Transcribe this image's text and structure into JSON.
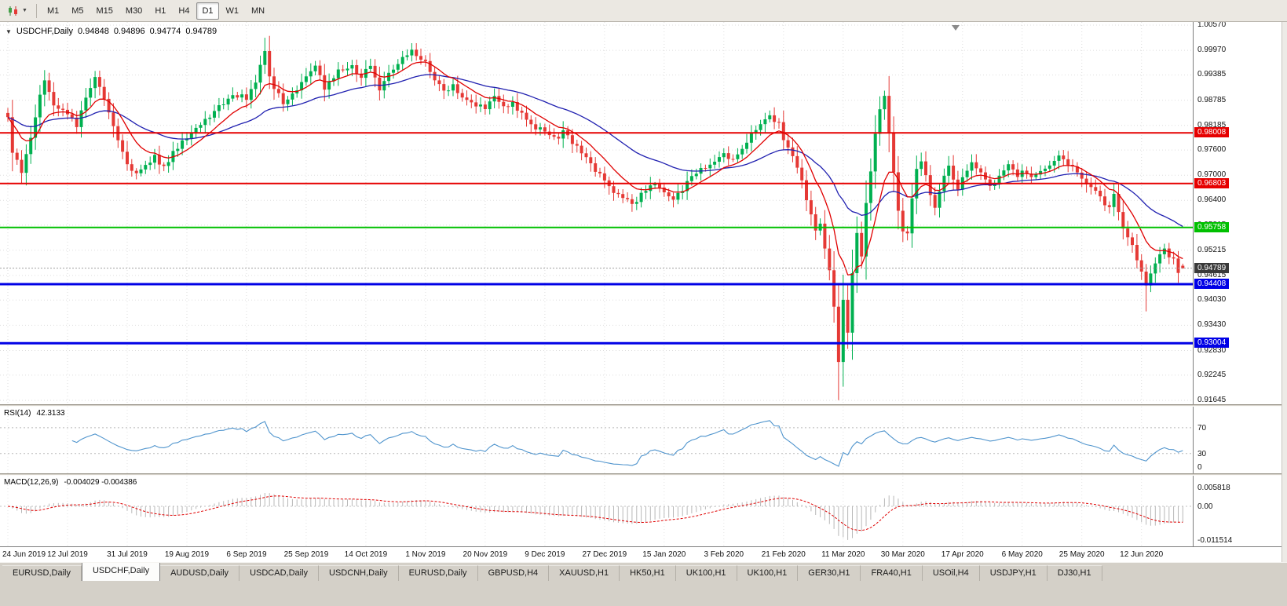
{
  "toolbar": {
    "timeframes": [
      "M1",
      "M5",
      "M15",
      "M30",
      "H1",
      "H4",
      "D1",
      "W1",
      "MN"
    ],
    "active_timeframe": "D1"
  },
  "chart_data": {
    "type": "candlestick",
    "symbol_period_label": "USDCHF,Daily",
    "current_bar": {
      "open": "0.94848",
      "high": "0.94896",
      "low": "0.94774",
      "close": "0.94789"
    },
    "bar_count": 257,
    "y_axis_ticks": [
      "1.00570",
      "0.99970",
      "0.99385",
      "0.98785",
      "0.98185",
      "0.97600",
      "0.97000",
      "0.96400",
      "0.95815",
      "0.95215",
      "0.94615",
      "0.94030",
      "0.93430",
      "0.92830",
      "0.92245",
      "0.91645"
    ],
    "x_axis_dates": [
      {
        "label": "24 Jun 2019",
        "day": 0
      },
      {
        "label": "12 Jul 2019",
        "day": 13
      },
      {
        "label": "31 Jul 2019",
        "day": 26
      },
      {
        "label": "19 Aug 2019",
        "day": 39
      },
      {
        "label": "6 Sep 2019",
        "day": 52
      },
      {
        "label": "25 Sep 2019",
        "day": 65
      },
      {
        "label": "14 Oct 2019",
        "day": 78
      },
      {
        "label": "1 Nov 2019",
        "day": 91
      },
      {
        "label": "20 Nov 2019",
        "day": 104
      },
      {
        "label": "9 Dec 2019",
        "day": 117
      },
      {
        "label": "27 Dec 2019",
        "day": 130
      },
      {
        "label": "15 Jan 2020",
        "day": 143
      },
      {
        "label": "3 Feb 2020",
        "day": 156
      },
      {
        "label": "21 Feb 2020",
        "day": 169
      },
      {
        "label": "11 Mar 2020",
        "day": 182
      },
      {
        "label": "30 Mar 2020",
        "day": 195
      },
      {
        "label": "17 Apr 2020",
        "day": 208
      },
      {
        "label": "6 May 2020",
        "day": 221
      },
      {
        "label": "25 May 2020",
        "day": 234
      },
      {
        "label": "12 Jun 2020",
        "day": 247
      }
    ],
    "price_path_anchors": [
      [
        0,
        0.9838
      ],
      [
        1,
        0.9755
      ],
      [
        3,
        0.9712
      ],
      [
        5,
        0.979
      ],
      [
        7,
        0.9888
      ],
      [
        8,
        0.9922
      ],
      [
        10,
        0.987
      ],
      [
        13,
        0.9848
      ],
      [
        15,
        0.9815
      ],
      [
        17,
        0.989
      ],
      [
        19,
        0.9928
      ],
      [
        21,
        0.9885
      ],
      [
        23,
        0.9812
      ],
      [
        26,
        0.9725
      ],
      [
        28,
        0.97
      ],
      [
        30,
        0.9718
      ],
      [
        32,
        0.9745
      ],
      [
        34,
        0.9716
      ],
      [
        36,
        0.9758
      ],
      [
        39,
        0.9792
      ],
      [
        43,
        0.983
      ],
      [
        46,
        0.9862
      ],
      [
        49,
        0.9895
      ],
      [
        52,
        0.9885
      ],
      [
        54,
        0.9925
      ],
      [
        56,
        0.9998
      ],
      [
        57,
        0.9942
      ],
      [
        58,
        0.9905
      ],
      [
        60,
        0.9872
      ],
      [
        62,
        0.9888
      ],
      [
        65,
        0.993
      ],
      [
        67,
        0.9955
      ],
      [
        69,
        0.9908
      ],
      [
        72,
        0.9948
      ],
      [
        75,
        0.9958
      ],
      [
        77,
        0.9938
      ],
      [
        79,
        0.9958
      ],
      [
        81,
        0.9906
      ],
      [
        83,
        0.994
      ],
      [
        86,
        0.9978
      ],
      [
        88,
        0.9998
      ],
      [
        89,
        0.9985
      ],
      [
        91,
        0.9975
      ],
      [
        93,
        0.993
      ],
      [
        95,
        0.9898
      ],
      [
        97,
        0.9912
      ],
      [
        99,
        0.989
      ],
      [
        101,
        0.9868
      ],
      [
        104,
        0.9862
      ],
      [
        106,
        0.9888
      ],
      [
        108,
        0.986
      ],
      [
        110,
        0.9868
      ],
      [
        112,
        0.9845
      ],
      [
        114,
        0.9822
      ],
      [
        117,
        0.98
      ],
      [
        119,
        0.9788
      ],
      [
        121,
        0.98
      ],
      [
        123,
        0.9778
      ],
      [
        125,
        0.9752
      ],
      [
        127,
        0.9725
      ],
      [
        130,
        0.969
      ],
      [
        132,
        0.9662
      ],
      [
        134,
        0.9645
      ],
      [
        136,
        0.9628
      ],
      [
        138,
        0.9655
      ],
      [
        140,
        0.9682
      ],
      [
        143,
        0.9662
      ],
      [
        145,
        0.9645
      ],
      [
        147,
        0.9668
      ],
      [
        149,
        0.9692
      ],
      [
        151,
        0.9715
      ],
      [
        153,
        0.973
      ],
      [
        156,
        0.9752
      ],
      [
        158,
        0.9738
      ],
      [
        160,
        0.9768
      ],
      [
        162,
        0.98
      ],
      [
        164,
        0.9828
      ],
      [
        166,
        0.9845
      ],
      [
        168,
        0.9822
      ],
      [
        169,
        0.979
      ],
      [
        171,
        0.9745
      ],
      [
        173,
        0.969
      ],
      [
        174,
        0.9638
      ],
      [
        175,
        0.961
      ],
      [
        176,
        0.9565
      ],
      [
        177,
        0.959
      ],
      [
        178,
        0.9528
      ],
      [
        179,
        0.947
      ],
      [
        180,
        0.939
      ],
      [
        181,
        0.9262
      ],
      [
        182,
        0.9405
      ],
      [
        183,
        0.933
      ],
      [
        184,
        0.9465
      ],
      [
        185,
        0.956
      ],
      [
        186,
        0.9505
      ],
      [
        187,
        0.9635
      ],
      [
        188,
        0.971
      ],
      [
        189,
        0.98
      ],
      [
        190,
        0.9862
      ],
      [
        191,
        0.9885
      ],
      [
        192,
        0.98
      ],
      [
        193,
        0.97
      ],
      [
        194,
        0.962
      ],
      [
        195,
        0.9572
      ],
      [
        196,
        0.9555
      ],
      [
        197,
        0.9648
      ],
      [
        198,
        0.9712
      ],
      [
        199,
        0.973
      ],
      [
        200,
        0.9695
      ],
      [
        201,
        0.966
      ],
      [
        202,
        0.9628
      ],
      [
        203,
        0.9665
      ],
      [
        204,
        0.97
      ],
      [
        205,
        0.9725
      ],
      [
        206,
        0.9692
      ],
      [
        207,
        0.9668
      ],
      [
        208,
        0.97
      ],
      [
        210,
        0.9732
      ],
      [
        212,
        0.97
      ],
      [
        214,
        0.9668
      ],
      [
        216,
        0.97
      ],
      [
        218,
        0.9725
      ],
      [
        220,
        0.97
      ],
      [
        221,
        0.9715
      ],
      [
        223,
        0.969
      ],
      [
        225,
        0.9712
      ],
      [
        227,
        0.973
      ],
      [
        229,
        0.9742
      ],
      [
        231,
        0.972
      ],
      [
        233,
        0.9708
      ],
      [
        234,
        0.9695
      ],
      [
        236,
        0.9668
      ],
      [
        238,
        0.9645
      ],
      [
        240,
        0.9625
      ],
      [
        241,
        0.965
      ],
      [
        242,
        0.961
      ],
      [
        243,
        0.9578
      ],
      [
        244,
        0.9548
      ],
      [
        245,
        0.953
      ],
      [
        246,
        0.9498
      ],
      [
        247,
        0.9472
      ],
      [
        248,
        0.9432
      ],
      [
        249,
        0.946
      ],
      [
        250,
        0.9495
      ],
      [
        251,
        0.9512
      ],
      [
        252,
        0.9525
      ],
      [
        253,
        0.951
      ],
      [
        254,
        0.9496
      ],
      [
        255,
        0.9462
      ],
      [
        256,
        0.94789
      ]
    ],
    "wick_overrides": [
      {
        "day": 8,
        "high": 0.995
      },
      {
        "day": 19,
        "high": 0.9948
      },
      {
        "day": 56,
        "high": 1.0027
      },
      {
        "day": 88,
        "high": 1.0014
      },
      {
        "day": 136,
        "low": 0.9613
      },
      {
        "day": 181,
        "low": 0.9165
      },
      {
        "day": 191,
        "high": 0.9901
      },
      {
        "day": 248,
        "low": 0.9376
      }
    ],
    "horizontal_levels": [
      {
        "price": "0.98008",
        "color": "#e60000",
        "thickness": 2
      },
      {
        "price": "0.96803",
        "color": "#e60000",
        "thickness": 2
      },
      {
        "price": "0.95758",
        "color": "#00c000",
        "thickness": 2
      },
      {
        "price": "0.94408",
        "color": "#0000e6",
        "thickness": 3
      },
      {
        "price": "0.93004",
        "color": "#0000e6",
        "thickness": 3
      }
    ],
    "last_price": {
      "value": "0.94789",
      "box_color": "#3a3a3a"
    },
    "moving_averages": [
      {
        "name": "fast-ma",
        "period": 10,
        "color": "#e00000"
      },
      {
        "name": "slow-ma",
        "period": 34,
        "color": "#2020b0"
      }
    ],
    "colors": {
      "bull": "#00b050",
      "bear": "#e53935",
      "grid": "#dedede"
    },
    "indicators": {
      "rsi": {
        "label": "RSI(14)",
        "current": "42.3133",
        "period": 14,
        "scale_marks": [
          70,
          30,
          0
        ],
        "line_color": "#4f94cd"
      },
      "macd": {
        "label": "MACD(12,26,9)",
        "current_values": "-0.004029 -0.004386",
        "fast": 12,
        "slow": 26,
        "signal": 9,
        "scale_marks": [
          "0.005818",
          "0.00",
          "-0.011514"
        ],
        "histogram_color": "#b8b8b8",
        "signal_color": "#e00000"
      }
    }
  },
  "tabs": {
    "items": [
      "EURUSD,Daily",
      "USDCHF,Daily",
      "AUDUSD,Daily",
      "USDCAD,Daily",
      "USDCNH,Daily",
      "EURUSD,Daily",
      "GBPUSD,H4",
      "XAUUSD,H1",
      "HK50,H1",
      "UK100,H1",
      "UK100,H1",
      "GER30,H1",
      "FRA40,H1",
      "USOil,H4",
      "USDJPY,H1",
      "DJ30,H1"
    ],
    "active_index": 1
  }
}
